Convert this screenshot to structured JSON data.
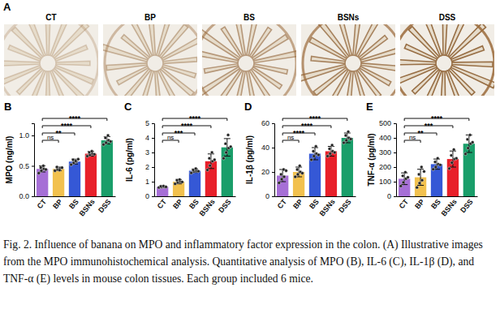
{
  "panel_a": {
    "title": "A",
    "labels": [
      "CT",
      "BP",
      "BS",
      "BSNs",
      "DSS"
    ]
  },
  "chart_data": [
    {
      "type": "bar",
      "title": "B",
      "y_label": "MPO (ng/ml)",
      "categories": [
        "CT",
        "BP",
        "BS",
        "BSNs",
        "DSS"
      ],
      "values": [
        0.45,
        0.45,
        0.57,
        0.7,
        0.92
      ],
      "errors": [
        0.05,
        0.03,
        0.04,
        0.04,
        0.06
      ],
      "points": [
        [
          0.38,
          0.42,
          0.45,
          0.47,
          0.5,
          0.44
        ],
        [
          0.42,
          0.44,
          0.46,
          0.48,
          0.43,
          0.47
        ],
        [
          0.52,
          0.55,
          0.57,
          0.6,
          0.58,
          0.61
        ],
        [
          0.66,
          0.68,
          0.7,
          0.72,
          0.74,
          0.69
        ],
        [
          0.85,
          0.88,
          0.92,
          0.96,
          1.0,
          0.9
        ]
      ],
      "colors": [
        "#a66fd6",
        "#f2c14e",
        "#3558d6",
        "#e8202a",
        "#1a9e6a"
      ],
      "ylim": [
        0,
        1.2
      ],
      "yticks": [
        {
          "value": 0,
          "label": "0.0"
        },
        0.5,
        {
          "value": 1,
          "label": "1.0"
        }
      ],
      "annotations": [
        {
          "from": "CT",
          "to": "BP",
          "label": "ns"
        },
        {
          "from": "CT",
          "to": "BS",
          "label": "**"
        },
        {
          "from": "CT",
          "to": "BSNs",
          "label": "****"
        },
        {
          "from": "CT",
          "to": "DSS",
          "label": "****"
        }
      ]
    },
    {
      "type": "bar",
      "title": "C",
      "y_label": "IL-6 (pg/ml)",
      "categories": [
        "CT",
        "BP",
        "BS",
        "BSNs",
        "DSS"
      ],
      "values": [
        0.65,
        1.0,
        1.75,
        2.4,
        3.35
      ],
      "errors": [
        0.06,
        0.15,
        0.12,
        0.5,
        0.6
      ],
      "points": [
        [
          0.6,
          0.62,
          0.65,
          0.68,
          0.7,
          0.64
        ],
        [
          0.85,
          0.95,
          1.0,
          1.1,
          1.15,
          0.98
        ],
        [
          1.6,
          1.7,
          1.75,
          1.8,
          1.9,
          1.72
        ],
        [
          1.8,
          2.1,
          2.4,
          2.6,
          3.0,
          2.5
        ],
        [
          2.6,
          3.0,
          3.3,
          3.6,
          4.2,
          3.4
        ]
      ],
      "colors": [
        "#a66fd6",
        "#f2c14e",
        "#3558d6",
        "#e8202a",
        "#1a9e6a"
      ],
      "ylim": [
        0,
        5
      ],
      "yticks": [
        0,
        1,
        2,
        3,
        4,
        5
      ],
      "annotations": [
        {
          "from": "CT",
          "to": "BP",
          "label": "ns"
        },
        {
          "from": "CT",
          "to": "BS",
          "label": "***"
        },
        {
          "from": "CT",
          "to": "BSNs",
          "label": "****"
        },
        {
          "from": "CT",
          "to": "DSS",
          "label": "****"
        }
      ]
    },
    {
      "type": "bar",
      "title": "D",
      "y_label": "IL-1β (pg/ml)",
      "categories": [
        "CT",
        "BP",
        "BS",
        "BSNs",
        "DSS"
      ],
      "values": [
        17,
        20,
        35,
        37,
        48
      ],
      "errors": [
        5,
        4,
        5,
        4,
        4
      ],
      "points": [
        [
          11,
          14,
          16,
          18,
          22,
          21
        ],
        [
          16,
          18,
          20,
          22,
          25,
          19
        ],
        [
          30,
          33,
          35,
          37,
          41,
          34
        ],
        [
          33,
          35,
          37,
          39,
          42,
          36
        ],
        [
          44,
          46,
          48,
          50,
          53,
          47
        ]
      ],
      "colors": [
        "#a66fd6",
        "#f2c14e",
        "#3558d6",
        "#e8202a",
        "#1a9e6a"
      ],
      "ylim": [
        0,
        60
      ],
      "yticks": [
        0,
        20,
        40,
        60
      ],
      "annotations": [
        {
          "from": "CT",
          "to": "BP",
          "label": "ns"
        },
        {
          "from": "CT",
          "to": "BS",
          "label": "****"
        },
        {
          "from": "CT",
          "to": "BSNs",
          "label": "****"
        },
        {
          "from": "CT",
          "to": "DSS",
          "label": "****"
        }
      ]
    },
    {
      "type": "bar",
      "title": "E",
      "y_label": "TNF-α (pg/ml)",
      "categories": [
        "CT",
        "BP",
        "BS",
        "BSNs",
        "DSS"
      ],
      "values": [
        120,
        130,
        220,
        255,
        360
      ],
      "errors": [
        40,
        55,
        35,
        55,
        60
      ],
      "points": [
        [
          70,
          95,
          120,
          140,
          165,
          130
        ],
        [
          60,
          90,
          110,
          150,
          200,
          170
        ],
        [
          185,
          200,
          220,
          235,
          260,
          215
        ],
        [
          190,
          230,
          255,
          280,
          320,
          260
        ],
        [
          290,
          330,
          360,
          390,
          420,
          370
        ]
      ],
      "colors": [
        "#a66fd6",
        "#f2c14e",
        "#3558d6",
        "#e8202a",
        "#1a9e6a"
      ],
      "ylim": [
        0,
        500
      ],
      "yticks": [
        0,
        100,
        200,
        300,
        400,
        500
      ],
      "annotations": [
        {
          "from": "CT",
          "to": "BP",
          "label": "ns"
        },
        {
          "from": "CT",
          "to": "BS",
          "label": "**"
        },
        {
          "from": "CT",
          "to": "BSNs",
          "label": "***"
        },
        {
          "from": "CT",
          "to": "DSS",
          "label": "****"
        }
      ]
    }
  ],
  "caption": "Fig. 2. Influence of banana on MPO and inflammatory factor expression in the colon. (A) Illustrative images from the MPO immunohistochemical analysis. Quantitative analysis of MPO (B), IL-6 (C), IL-1β (D), and TNF-α (E) levels in mouse colon tissues. Each group included 6 mice."
}
